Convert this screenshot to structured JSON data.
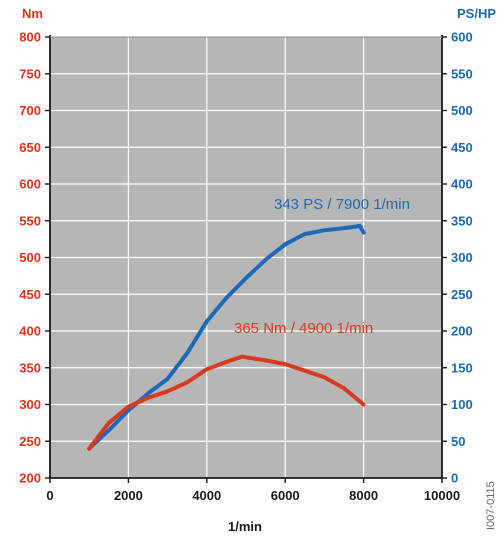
{
  "chart_data": {
    "type": "line",
    "xlabel": "1/min",
    "xlim": [
      0,
      10000
    ],
    "xticks": [
      0,
      2000,
      4000,
      6000,
      8000,
      10000
    ],
    "y_left": {
      "unit": "Nm",
      "lim": [
        200,
        800
      ],
      "ticks": [
        200,
        250,
        300,
        350,
        400,
        450,
        500,
        550,
        600,
        650,
        700,
        750,
        800
      ]
    },
    "y_right": {
      "unit": "PS/HP",
      "lim": [
        0,
        600
      ],
      "ticks": [
        0,
        50,
        100,
        150,
        200,
        250,
        300,
        350,
        400,
        450,
        500,
        550,
        600
      ]
    },
    "grid": true,
    "series": [
      {
        "axis": "right",
        "x": [
          1000,
          1500,
          2000,
          2500,
          3000,
          3500,
          4000,
          4500,
          5000,
          5500,
          6000,
          6500,
          7000,
          7500,
          7800,
          7900,
          8000
        ],
        "y": [
          40,
          65,
          92,
          115,
          135,
          170,
          213,
          245,
          272,
          297,
          318,
          332,
          337,
          340,
          342,
          343,
          334
        ]
      },
      {
        "axis": "left",
        "x": [
          1000,
          1500,
          2000,
          2500,
          3000,
          3500,
          4000,
          4500,
          4900,
          5500,
          6000,
          6500,
          7000,
          7500,
          8000
        ],
        "y": [
          240,
          275,
          297,
          309,
          318,
          330,
          348,
          358,
          365,
          360,
          355,
          346,
          337,
          322,
          300
        ]
      }
    ],
    "annotations": [
      {
        "text": "343 PS / 7900 1/min",
        "color": "#1c69b5"
      },
      {
        "text": "365 Nm / 4900  1/min",
        "color": "#d83a20"
      }
    ],
    "side_code": "I007-0115"
  },
  "colors": {
    "power": "#1c69b5",
    "torque": "#d83a20",
    "plot_bg": "#b6b6b6",
    "grid": "#ffffff",
    "left_axis_text": "#e3321d",
    "right_axis_text": "#1c69b5"
  }
}
